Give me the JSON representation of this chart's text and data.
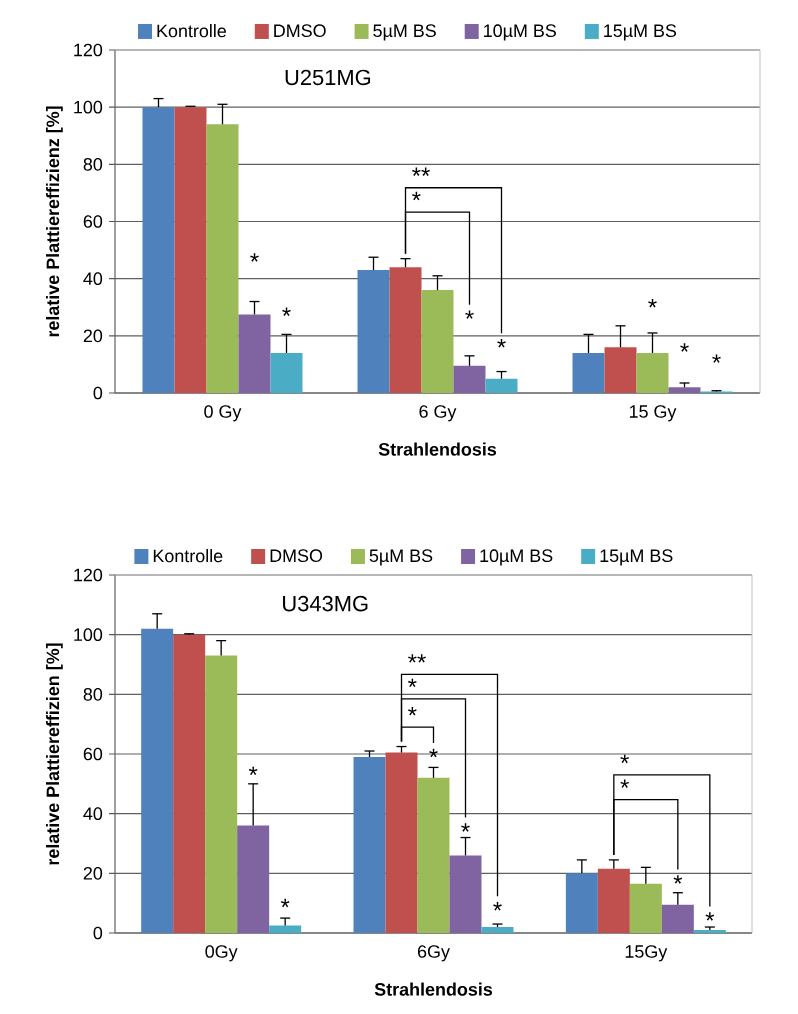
{
  "chart_data": [
    {
      "type": "bar",
      "title": "U251MG",
      "xlabel": "Strahlendosis",
      "ylabel": "relative Plattiereffizienz [%]",
      "categories": [
        "0 Gy",
        "6 Gy",
        "15 Gy"
      ],
      "series": [
        {
          "name": "Kontrolle",
          "color": "#4f81bd",
          "values": [
            100,
            43,
            14
          ],
          "errors": [
            3,
            4.5,
            6.5
          ]
        },
        {
          "name": "DMSO",
          "color": "#c0504d",
          "values": [
            100,
            44,
            16
          ],
          "errors": [
            0.3,
            3,
            7.5
          ]
        },
        {
          "name": "5µM BS",
          "color": "#9bbb59",
          "values": [
            94,
            36,
            14
          ],
          "errors": [
            7,
            5,
            7
          ]
        },
        {
          "name": "10µM BS",
          "color": "#8064a2",
          "values": [
            27.5,
            9.5,
            2
          ],
          "errors": [
            4.5,
            3.5,
            1.5
          ]
        },
        {
          "name": "15µM BS",
          "color": "#4bacc6",
          "values": [
            14,
            5,
            0.5
          ],
          "errors": [
            6.5,
            2.5,
            0.3
          ]
        }
      ],
      "ylim": [
        0,
        120
      ],
      "yticks": [
        0,
        20,
        40,
        60,
        80,
        100,
        120
      ],
      "grid": "y",
      "legend": "top",
      "annotations": [
        "*",
        "*",
        "**",
        "*",
        "*",
        "*",
        "*",
        "*",
        "*"
      ]
    },
    {
      "type": "bar",
      "title": "U343MG",
      "xlabel": "Strahlendosis",
      "ylabel": "relative Plattiereffizien [%]",
      "categories": [
        "0Gy",
        "6Gy",
        "15Gy"
      ],
      "series": [
        {
          "name": "Kontrolle",
          "color": "#4f81bd",
          "values": [
            102,
            59,
            20
          ],
          "errors": [
            5,
            2,
            4.5
          ]
        },
        {
          "name": "DMSO",
          "color": "#c0504d",
          "values": [
            100,
            60.5,
            21.5
          ],
          "errors": [
            0.3,
            2,
            3
          ]
        },
        {
          "name": "5µM BS",
          "color": "#9bbb59",
          "values": [
            93,
            52,
            16.5
          ],
          "errors": [
            5,
            3.5,
            5.5
          ]
        },
        {
          "name": "10µM BS",
          "color": "#8064a2",
          "values": [
            36,
            26,
            9.5
          ],
          "errors": [
            14,
            6,
            4
          ]
        },
        {
          "name": "15µM BS",
          "color": "#4bacc6",
          "values": [
            2.5,
            2,
            1
          ],
          "errors": [
            2.5,
            1,
            1
          ]
        }
      ],
      "ylim": [
        0,
        120
      ],
      "yticks": [
        0,
        20,
        40,
        60,
        80,
        100,
        120
      ],
      "grid": "y",
      "legend": "top",
      "annotations": [
        "*",
        "*",
        "**",
        "*",
        "*",
        "*",
        "*",
        "*",
        "*",
        "*",
        "*",
        "*"
      ]
    }
  ]
}
